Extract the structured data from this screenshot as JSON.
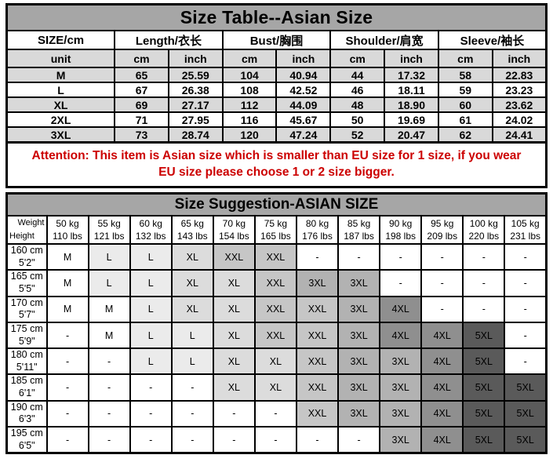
{
  "colors": {
    "band_gray": "#a6a6a6",
    "row_gray": "#d9d9d9",
    "corner_gray": "#ababab",
    "attention_red": "#cc0000",
    "border_black": "#000000"
  },
  "size_table": {
    "title": "Size Table--Asian Size",
    "columns": [
      {
        "label": "SIZE/cm"
      },
      {
        "label": "Length/衣长"
      },
      {
        "label": "Bust/胸围"
      },
      {
        "label": "Shoulder/肩宽"
      },
      {
        "label": "Sleeve/袖长"
      }
    ],
    "unit_row": [
      "unit",
      "cm",
      "inch",
      "cm",
      "inch",
      "cm",
      "inch",
      "cm",
      "inch"
    ],
    "rows": [
      {
        "size": "M",
        "values": [
          "65",
          "25.59",
          "104",
          "40.94",
          "44",
          "17.32",
          "58",
          "22.83"
        ]
      },
      {
        "size": "L",
        "values": [
          "67",
          "26.38",
          "108",
          "42.52",
          "46",
          "18.11",
          "59",
          "23.23"
        ]
      },
      {
        "size": "XL",
        "values": [
          "69",
          "27.17",
          "112",
          "44.09",
          "48",
          "18.90",
          "60",
          "23.62"
        ]
      },
      {
        "size": "2XL",
        "values": [
          "71",
          "27.95",
          "116",
          "45.67",
          "50",
          "19.69",
          "61",
          "24.02"
        ]
      },
      {
        "size": "3XL",
        "values": [
          "73",
          "28.74",
          "120",
          "47.24",
          "52",
          "20.47",
          "62",
          "24.41"
        ]
      }
    ]
  },
  "attention": {
    "line1": "Attention:  This item is Asian size which is smaller than EU size for 1 size, if you wear",
    "line2": "EU size please choose 1 or 2 size bigger."
  },
  "suggestion_table": {
    "title": "Size Suggestion-ASIAN SIZE",
    "corner": {
      "top_right": "Weight",
      "bottom_left": "Height"
    },
    "weight_headers": [
      {
        "kg": "50 kg",
        "lbs": "110 lbs"
      },
      {
        "kg": "55 kg",
        "lbs": "121 lbs"
      },
      {
        "kg": "60 kg",
        "lbs": "132 lbs"
      },
      {
        "kg": "65 kg",
        "lbs": "143 lbs"
      },
      {
        "kg": "70 kg",
        "lbs": "154 lbs"
      },
      {
        "kg": "75 kg",
        "lbs": "165 lbs"
      },
      {
        "kg": "80 kg",
        "lbs": "176 lbs"
      },
      {
        "kg": "85 kg",
        "lbs": "187 lbs"
      },
      {
        "kg": "90 kg",
        "lbs": "198 lbs"
      },
      {
        "kg": "95 kg",
        "lbs": "209 lbs"
      },
      {
        "kg": "100 kg",
        "lbs": "220 lbs"
      },
      {
        "kg": "105 kg",
        "lbs": "231 lbs"
      }
    ],
    "height_rows": [
      {
        "height_cm": "160 cm",
        "height_ft": "5'2\"",
        "cells": [
          "M",
          "L",
          "L",
          "XL",
          "XXL",
          "XXL",
          "-",
          "-",
          "-",
          "-",
          "-",
          "-"
        ]
      },
      {
        "height_cm": "165 cm",
        "height_ft": "5'5\"",
        "cells": [
          "M",
          "L",
          "L",
          "XL",
          "XL",
          "XXL",
          "3XL",
          "3XL",
          "-",
          "-",
          "-",
          "-"
        ]
      },
      {
        "height_cm": "170 cm",
        "height_ft": "5'7\"",
        "cells": [
          "M",
          "M",
          "L",
          "XL",
          "XL",
          "XXL",
          "XXL",
          "3XL",
          "4XL",
          "-",
          "-",
          "-"
        ]
      },
      {
        "height_cm": "175 cm",
        "height_ft": "5'9\"",
        "cells": [
          "-",
          "M",
          "L",
          "L",
          "XL",
          "XXL",
          "XXL",
          "3XL",
          "4XL",
          "4XL",
          "5XL",
          "-"
        ]
      },
      {
        "height_cm": "180 cm",
        "height_ft": "5'11\"",
        "cells": [
          "-",
          "-",
          "L",
          "L",
          "XL",
          "XL",
          "XXL",
          "3XL",
          "3XL",
          "4XL",
          "5XL",
          "-"
        ]
      },
      {
        "height_cm": "185 cm",
        "height_ft": "6'1\"",
        "cells": [
          "-",
          "-",
          "-",
          "-",
          "XL",
          "XL",
          "XXL",
          "3XL",
          "3XL",
          "4XL",
          "5XL",
          "5XL"
        ]
      },
      {
        "height_cm": "190 cm",
        "height_ft": "6'3\"",
        "cells": [
          "-",
          "-",
          "-",
          "-",
          "-",
          "-",
          "XXL",
          "3XL",
          "3XL",
          "4XL",
          "5XL",
          "5XL"
        ]
      },
      {
        "height_cm": "195 cm",
        "height_ft": "6'5\"",
        "cells": [
          "-",
          "-",
          "-",
          "-",
          "-",
          "-",
          "-",
          "-",
          "3XL",
          "4XL",
          "5XL",
          "5XL"
        ]
      }
    ],
    "shade_colors": {
      "M": "#ffffff",
      "L": "#ebebeb",
      "XL": "#dcdcdc",
      "XXL": "#c6c6c6",
      "3XL": "#b2b2b2",
      "4XL": "#8f8f8f",
      "5XL": "#5a5a5a",
      "-": "#ffffff"
    }
  }
}
